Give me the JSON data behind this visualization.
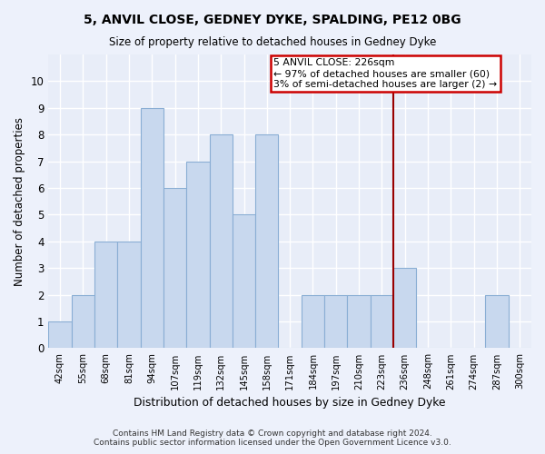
{
  "title": "5, ANVIL CLOSE, GEDNEY DYKE, SPALDING, PE12 0BG",
  "subtitle": "Size of property relative to detached houses in Gedney Dyke",
  "xlabel": "Distribution of detached houses by size in Gedney Dyke",
  "ylabel": "Number of detached properties",
  "categories": [
    "42sqm",
    "55sqm",
    "68sqm",
    "81sqm",
    "94sqm",
    "107sqm",
    "119sqm",
    "132sqm",
    "145sqm",
    "158sqm",
    "171sqm",
    "184sqm",
    "197sqm",
    "210sqm",
    "223sqm",
    "236sqm",
    "248sqm",
    "261sqm",
    "274sqm",
    "287sqm",
    "300sqm"
  ],
  "values": [
    1,
    2,
    4,
    4,
    9,
    6,
    7,
    8,
    5,
    8,
    0,
    2,
    2,
    2,
    2,
    3,
    0,
    0,
    0,
    2,
    0
  ],
  "bar_color": "#c8d8ee",
  "bar_edge_color": "#8aaed4",
  "red_line_x": 14.5,
  "annotation_title": "5 ANVIL CLOSE: 226sqm",
  "annotation_line1": "← 97% of detached houses are smaller (60)",
  "annotation_line2": "3% of semi-detached houses are larger (2) →",
  "ylim": [
    0,
    11
  ],
  "yticks": [
    0,
    1,
    2,
    3,
    4,
    5,
    6,
    7,
    8,
    9,
    10
  ],
  "footer_line1": "Contains HM Land Registry data © Crown copyright and database right 2024.",
  "footer_line2": "Contains public sector information licensed under the Open Government Licence v3.0.",
  "bg_color": "#edf1fb",
  "plot_bg_color": "#e8edf8"
}
